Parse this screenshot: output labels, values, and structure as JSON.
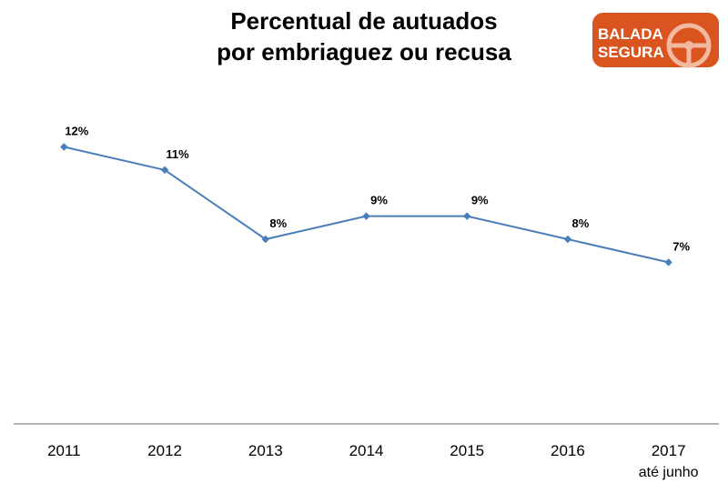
{
  "logo": {
    "line1": "BALADA",
    "line2": "SEGURA",
    "color": "#D9541E"
  },
  "chart_data": {
    "type": "line",
    "title": [
      "Percentual de autuados",
      "por embriaguez ou recusa"
    ],
    "xlabel": "",
    "ylabel": "",
    "categories": [
      "2011",
      "2012",
      "2013",
      "2014",
      "2015",
      "2016",
      "2017"
    ],
    "category_sublabels": [
      "",
      "",
      "",
      "",
      "",
      "",
      "até junho"
    ],
    "series": [
      {
        "values": [
          12,
          11,
          8,
          9,
          9,
          8,
          7
        ],
        "labels": [
          "12%",
          "11%",
          "8%",
          "9%",
          "9%",
          "8%",
          "7%"
        ],
        "color": "#4A7EBB"
      }
    ],
    "ylim": [
      0,
      16
    ],
    "grid": false,
    "legend": "none"
  }
}
